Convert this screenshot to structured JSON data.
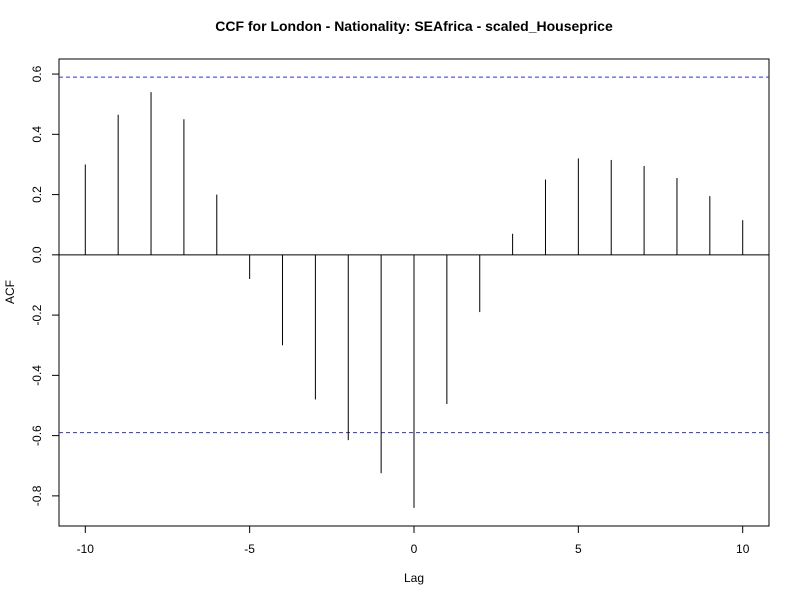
{
  "chart_data": {
    "type": "bar",
    "title": "CCF for London - Nationality: SEAfrica - scaled_Houseprice",
    "xlabel": "Lag",
    "ylabel": "ACF",
    "x": [
      -10,
      -9,
      -8,
      -7,
      -6,
      -5,
      -4,
      -3,
      -2,
      -1,
      0,
      1,
      2,
      3,
      4,
      5,
      6,
      7,
      8,
      9,
      10
    ],
    "values": [
      0.3,
      0.465,
      0.54,
      0.45,
      0.2,
      -0.08,
      -0.3,
      -0.48,
      -0.615,
      -0.725,
      -0.84,
      -0.495,
      -0.19,
      0.07,
      0.25,
      0.32,
      0.315,
      0.295,
      0.255,
      0.195,
      0.115
    ],
    "xlim": [
      -10.8,
      10.8
    ],
    "ylim": [
      -0.9,
      0.65
    ],
    "xticks": [
      -10,
      -5,
      0,
      5,
      10
    ],
    "xtick_labels": [
      "-10",
      "-5",
      "0",
      "5",
      "10"
    ],
    "yticks": [
      -0.8,
      -0.6,
      -0.4,
      -0.2,
      0.0,
      0.2,
      0.4,
      0.6
    ],
    "ytick_labels": [
      "-0.8",
      "-0.6",
      "-0.4",
      "-0.2",
      "0.0",
      "0.2",
      "0.4",
      "0.6"
    ],
    "confidence_bounds": [
      0.59,
      -0.59
    ],
    "zero_line": 0,
    "grid": false,
    "colors": {
      "bars": "#000000",
      "confidence": "#3333cc",
      "frame": "#000000"
    }
  }
}
